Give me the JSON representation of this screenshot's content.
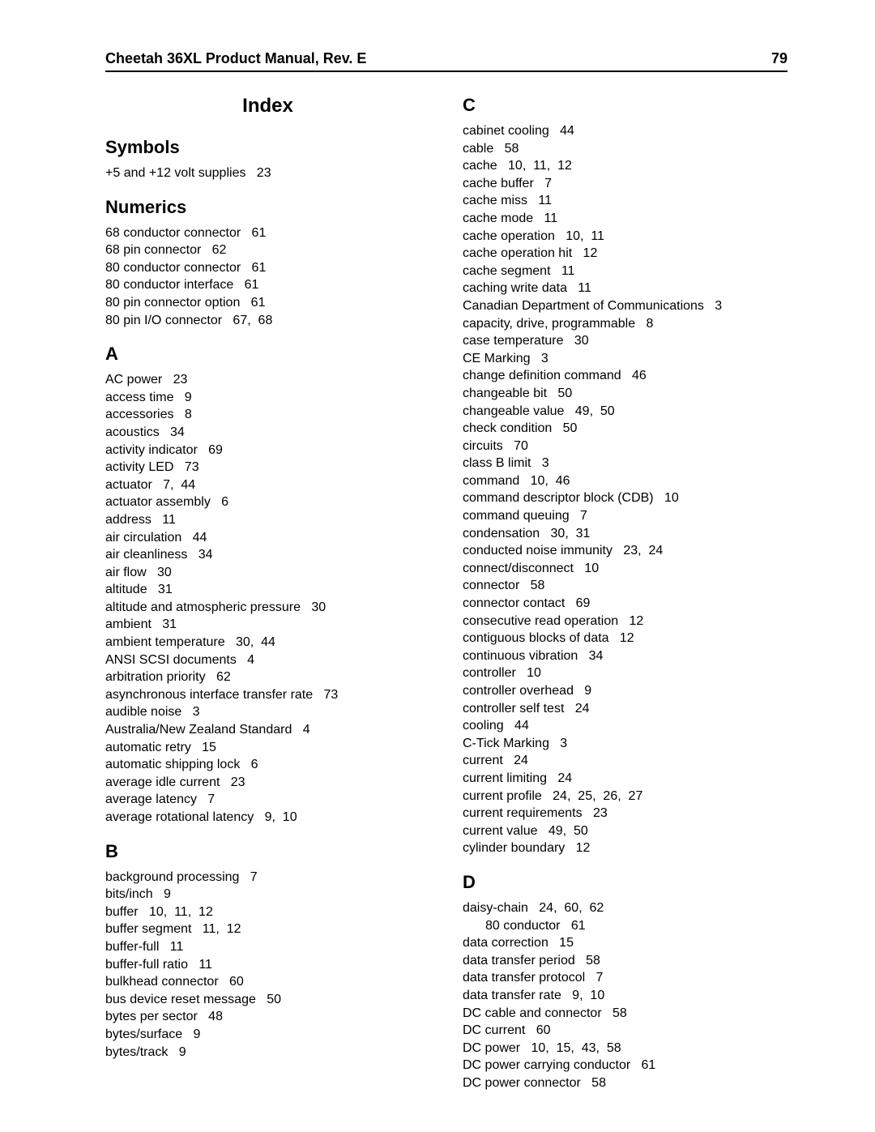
{
  "header": {
    "title": "Cheetah 36XL Product Manual, Rev. E",
    "page": "79"
  },
  "index_title": "Index",
  "left": {
    "sections": [
      {
        "head": "Symbols",
        "entries": [
          {
            "text": "+5 and +12 volt supplies   23"
          }
        ]
      },
      {
        "head": "Numerics",
        "entries": [
          {
            "text": "68 conductor connector   61"
          },
          {
            "text": "68 pin connector   62"
          },
          {
            "text": "80 conductor connector   61"
          },
          {
            "text": "80 conductor interface   61"
          },
          {
            "text": "80 pin connector option   61"
          },
          {
            "text": "80 pin I/O connector   67,  68"
          }
        ]
      },
      {
        "head": "A",
        "entries": [
          {
            "text": "AC power   23"
          },
          {
            "text": "access time   9"
          },
          {
            "text": "accessories   8"
          },
          {
            "text": "acoustics   34"
          },
          {
            "text": "activity indicator   69"
          },
          {
            "text": "activity LED   73"
          },
          {
            "text": "actuator   7,  44"
          },
          {
            "text": "actuator assembly   6"
          },
          {
            "text": "address   11"
          },
          {
            "text": "air circulation   44"
          },
          {
            "text": "air cleanliness   34"
          },
          {
            "text": "air flow   30"
          },
          {
            "text": "altitude   31"
          },
          {
            "text": "altitude and atmospheric pressure   30"
          },
          {
            "text": "ambient   31"
          },
          {
            "text": "ambient temperature   30,  44"
          },
          {
            "text": "ANSI SCSI documents   4"
          },
          {
            "text": "arbitration priority   62"
          },
          {
            "text": "asynchronous interface transfer rate   73"
          },
          {
            "text": "audible noise   3"
          },
          {
            "text": "Australia/New Zealand Standard   4"
          },
          {
            "text": "automatic retry   15"
          },
          {
            "text": "automatic shipping lock   6"
          },
          {
            "text": "average idle current   23"
          },
          {
            "text": "average latency   7"
          },
          {
            "text": "average rotational latency   9,  10"
          }
        ]
      },
      {
        "head": "B",
        "entries": [
          {
            "text": "background processing   7"
          },
          {
            "text": "bits/inch   9"
          },
          {
            "text": "buffer   10,  11,  12"
          },
          {
            "text": "buffer segment   11,  12"
          },
          {
            "text": "buffer-full   11"
          },
          {
            "text": "buffer-full ratio   11"
          },
          {
            "text": "bulkhead connector   60"
          },
          {
            "text": "bus device reset message   50"
          },
          {
            "text": "bytes per sector   48"
          },
          {
            "text": "bytes/surface   9"
          },
          {
            "text": "bytes/track   9"
          }
        ]
      }
    ]
  },
  "right": {
    "sections": [
      {
        "head": "C",
        "entries": [
          {
            "text": "cabinet cooling   44"
          },
          {
            "text": "cable   58"
          },
          {
            "text": "cache   10,  11,  12"
          },
          {
            "text": "cache buffer   7"
          },
          {
            "text": "cache miss   11"
          },
          {
            "text": "cache mode   11"
          },
          {
            "text": "cache operation   10,  11"
          },
          {
            "text": "cache operation hit   12"
          },
          {
            "text": "cache segment   11"
          },
          {
            "text": "caching write data   11"
          },
          {
            "text": "Canadian Department of Communications   3"
          },
          {
            "text": "capacity, drive, programmable   8"
          },
          {
            "text": "case temperature   30"
          },
          {
            "text": "CE Marking   3"
          },
          {
            "text": "change definition command   46"
          },
          {
            "text": "changeable bit   50"
          },
          {
            "text": "changeable value   49,  50"
          },
          {
            "text": "check condition   50"
          },
          {
            "text": "circuits   70"
          },
          {
            "text": "class B limit   3"
          },
          {
            "text": "command   10,  46"
          },
          {
            "text": "command descriptor block (CDB)   10"
          },
          {
            "text": "command queuing   7"
          },
          {
            "text": "condensation   30,  31"
          },
          {
            "text": "conducted noise immunity   23,  24"
          },
          {
            "text": "connect/disconnect   10"
          },
          {
            "text": "connector   58"
          },
          {
            "text": "connector contact   69"
          },
          {
            "text": "consecutive read operation   12"
          },
          {
            "text": "contiguous blocks of data   12"
          },
          {
            "text": "continuous vibration   34"
          },
          {
            "text": "controller   10"
          },
          {
            "text": "controller overhead   9"
          },
          {
            "text": "controller self test   24"
          },
          {
            "text": "cooling   44"
          },
          {
            "text": "C-Tick Marking   3"
          },
          {
            "text": "current   24"
          },
          {
            "text": "current limiting   24"
          },
          {
            "text": "current profile   24,  25,  26,  27"
          },
          {
            "text": "current requirements   23"
          },
          {
            "text": "current value   49,  50"
          },
          {
            "text": "cylinder boundary   12"
          }
        ]
      },
      {
        "head": "D",
        "entries": [
          {
            "text": "daisy-chain   24,  60,  62"
          },
          {
            "text": "80 conductor   61",
            "indent": true
          },
          {
            "text": "data correction   15"
          },
          {
            "text": "data transfer period   58"
          },
          {
            "text": "data transfer protocol   7"
          },
          {
            "text": "data transfer rate   9,  10"
          },
          {
            "text": "DC cable and connector   58"
          },
          {
            "text": "DC current   60"
          },
          {
            "text": "DC power   10,  15,  43,  58"
          },
          {
            "text": "DC power carrying conductor   61"
          },
          {
            "text": "DC power connector   58"
          }
        ]
      }
    ]
  }
}
